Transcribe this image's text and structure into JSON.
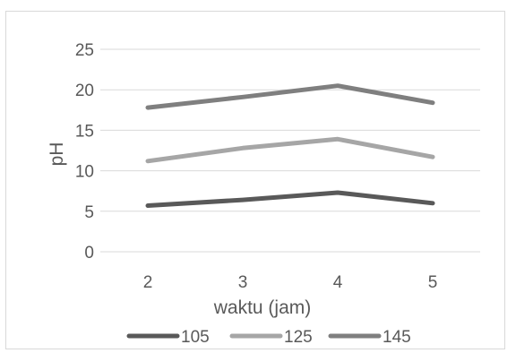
{
  "chart_data": {
    "type": "line",
    "title": "",
    "xlabel": "waktu (jam)",
    "ylabel": "pH",
    "categories": [
      "2",
      "3",
      "4",
      "5"
    ],
    "ylim": [
      0,
      25
    ],
    "yticks": [
      0,
      5,
      10,
      15,
      20,
      25
    ],
    "grid": true,
    "legend_position": "bottom",
    "series": [
      {
        "name": "105",
        "color": "#595959",
        "values": [
          5.7,
          6.4,
          7.3,
          6.0
        ]
      },
      {
        "name": "125",
        "color": "#a6a6a6",
        "values": [
          11.2,
          12.8,
          13.9,
          11.7
        ]
      },
      {
        "name": "145",
        "color": "#7f7f7f",
        "values": [
          17.8,
          19.1,
          20.5,
          18.4
        ]
      }
    ]
  }
}
